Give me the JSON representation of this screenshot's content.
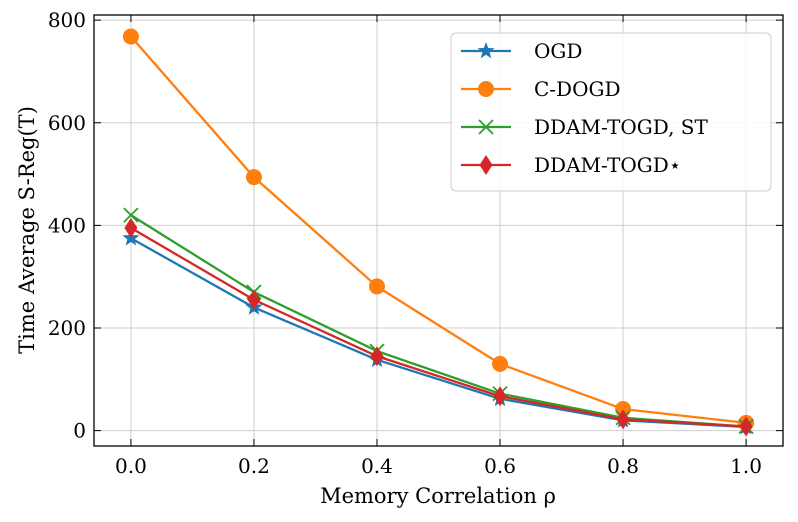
{
  "chart_data": {
    "type": "line",
    "title": "",
    "xlabel": "Memory Correlation ρ",
    "ylabel": "Time Average S-Reg(T)",
    "x": [
      0.0,
      0.2,
      0.4,
      0.6,
      0.8,
      1.0
    ],
    "x_tick_labels": [
      "0.0",
      "0.2",
      "0.4",
      "0.6",
      "0.8",
      "1.0"
    ],
    "y_ticks": [
      0,
      200,
      400,
      600,
      800
    ],
    "y_tick_labels": [
      "0",
      "200",
      "400",
      "600",
      "800"
    ],
    "xlim": [
      -0.06,
      1.06
    ],
    "ylim": [
      -30,
      810
    ],
    "grid": true,
    "legend_position": "top-right",
    "series": [
      {
        "name": "OGD",
        "marker": "star",
        "color": "#1f77b4",
        "values": [
          375,
          240,
          138,
          62,
          20,
          7
        ]
      },
      {
        "name": "C-DOGD",
        "marker": "circle",
        "color": "#ff7f0e",
        "values": [
          768,
          494,
          281,
          130,
          42,
          15
        ]
      },
      {
        "name": "DDAM-TOGD, ST",
        "marker": "x",
        "color": "#2ca02c",
        "values": [
          420,
          270,
          155,
          72,
          25,
          8
        ]
      },
      {
        "name": "DDAM-TOGD⋆",
        "marker": "diamond",
        "color": "#d62728",
        "values": [
          395,
          255,
          145,
          67,
          22,
          8
        ]
      }
    ]
  }
}
